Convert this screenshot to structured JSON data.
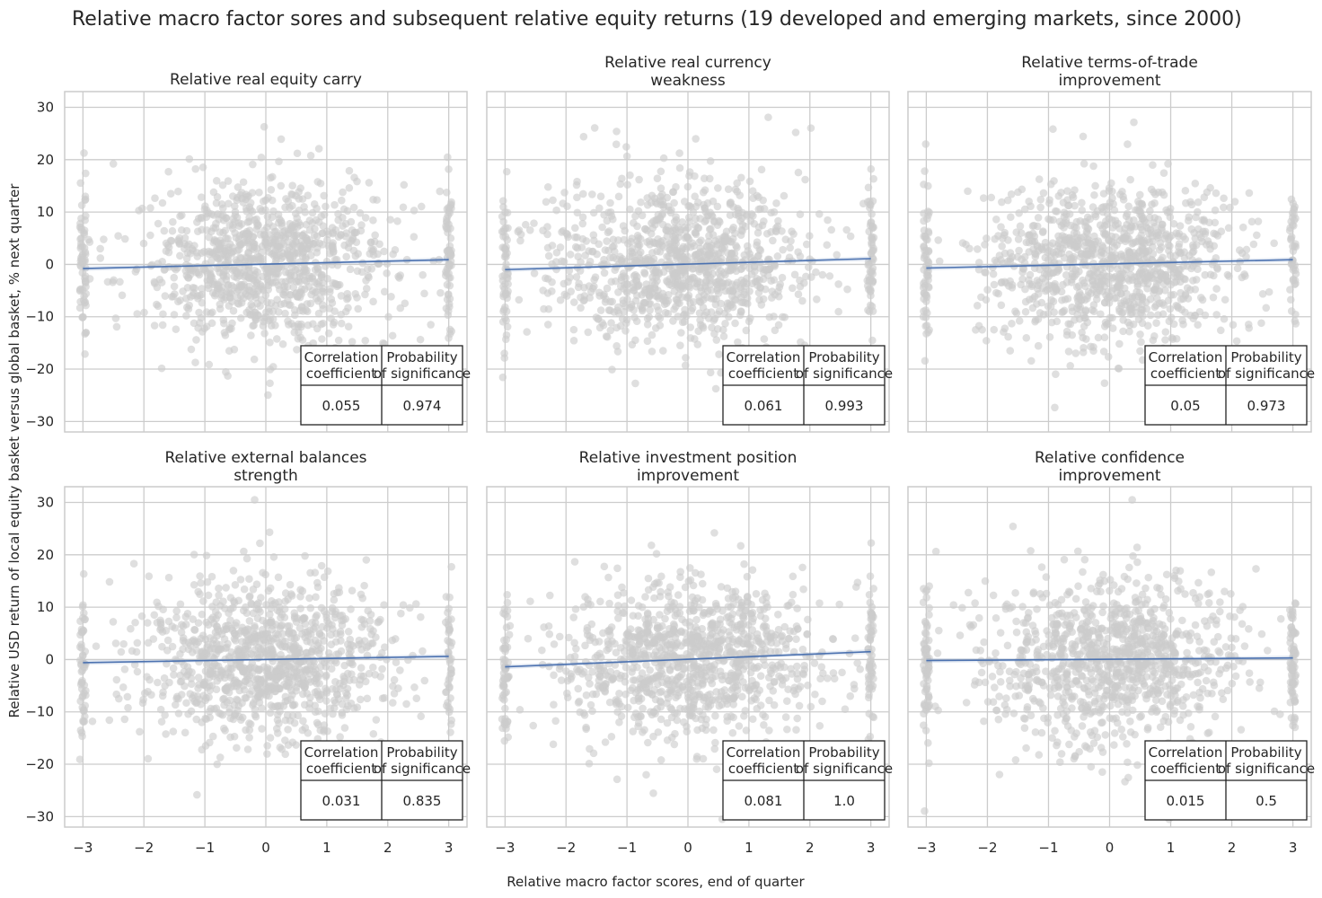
{
  "figure": {
    "title": "Relative macro factor sores and subsequent relative equity returns (19 developed and emerging markets, since 2000)",
    "xlabel": "Relative macro factor scores, end of quarter",
    "ylabel": "Relative USD return of local equity basket versus global basket, % next quarter"
  },
  "colors": {
    "points": "#cccccc",
    "line": "#4c72b0",
    "grid": "#cccccc",
    "spine": "#cccccc",
    "text": "#262626"
  },
  "chart_data": [
    {
      "type": "scatter",
      "title": [
        "Relative real equity carry"
      ],
      "xlim": [
        -3.3,
        3.3
      ],
      "ylim": [
        -32,
        33
      ],
      "xticks": [
        -3,
        -2,
        -1,
        0,
        1,
        2,
        3
      ],
      "xtick_labels": [
        "−3",
        "−2",
        "−1",
        "0",
        "1",
        "2",
        "3"
      ],
      "yticks": [
        30,
        20,
        10,
        0,
        -10,
        -20,
        -30
      ],
      "ytick_labels": [
        "30",
        "20",
        "10",
        "0",
        "−10",
        "−20",
        "−30"
      ],
      "regression_line": {
        "x": [
          -3,
          3
        ],
        "y": [
          -0.8,
          0.9
        ]
      },
      "stats_table": {
        "headers": [
          "Correlation\n coefficient",
          "Probability\nof significance"
        ],
        "values": [
          "0.055",
          "0.974"
        ]
      }
    },
    {
      "type": "scatter",
      "title": [
        "Relative real currency",
        "weakness"
      ],
      "xlim": [
        -3.3,
        3.3
      ],
      "ylim": [
        -32,
        33
      ],
      "xticks": [
        -3,
        -2,
        -1,
        0,
        1,
        2,
        3
      ],
      "xtick_labels": [
        "−3",
        "−2",
        "−1",
        "0",
        "1",
        "2",
        "3"
      ],
      "yticks": [
        30,
        20,
        10,
        0,
        -10,
        -20,
        -30
      ],
      "ytick_labels": [
        "30",
        "20",
        "10",
        "0",
        "−10",
        "−20",
        "−30"
      ],
      "regression_line": {
        "x": [
          -3,
          3
        ],
        "y": [
          -1.0,
          1.1
        ]
      },
      "stats_table": {
        "headers": [
          "Correlation\n coefficient",
          "Probability\nof significance"
        ],
        "values": [
          "0.061",
          "0.993"
        ]
      }
    },
    {
      "type": "scatter",
      "title": [
        "Relative terms-of-trade",
        "improvement"
      ],
      "xlim": [
        -3.3,
        3.3
      ],
      "ylim": [
        -32,
        33
      ],
      "xticks": [
        -3,
        -2,
        -1,
        0,
        1,
        2,
        3
      ],
      "xtick_labels": [
        "−3",
        "−2",
        "−1",
        "0",
        "1",
        "2",
        "3"
      ],
      "yticks": [
        30,
        20,
        10,
        0,
        -10,
        -20,
        -30
      ],
      "ytick_labels": [
        "30",
        "20",
        "10",
        "0",
        "−10",
        "−20",
        "−30"
      ],
      "regression_line": {
        "x": [
          -3,
          3
        ],
        "y": [
          -0.7,
          0.9
        ]
      },
      "stats_table": {
        "headers": [
          "Correlation\n coefficient",
          "Probability\nof significance"
        ],
        "values": [
          "0.05",
          "0.973"
        ]
      }
    },
    {
      "type": "scatter",
      "title": [
        "Relative external balances",
        "strength"
      ],
      "xlim": [
        -3.3,
        3.3
      ],
      "ylim": [
        -32,
        33
      ],
      "xticks": [
        -3,
        -2,
        -1,
        0,
        1,
        2,
        3
      ],
      "xtick_labels": [
        "−3",
        "−2",
        "−1",
        "0",
        "1",
        "2",
        "3"
      ],
      "yticks": [
        30,
        20,
        10,
        0,
        -10,
        -20,
        -30
      ],
      "ytick_labels": [
        "30",
        "20",
        "10",
        "0",
        "−10",
        "−20",
        "−30"
      ],
      "regression_line": {
        "x": [
          -3,
          3
        ],
        "y": [
          -0.6,
          0.6
        ]
      },
      "stats_table": {
        "headers": [
          "Correlation\n coefficient",
          "Probability\nof significance"
        ],
        "values": [
          "0.031",
          "0.835"
        ]
      }
    },
    {
      "type": "scatter",
      "title": [
        "Relative investment position",
        "improvement"
      ],
      "xlim": [
        -3.3,
        3.3
      ],
      "ylim": [
        -32,
        33
      ],
      "xticks": [
        -3,
        -2,
        -1,
        0,
        1,
        2,
        3
      ],
      "xtick_labels": [
        "−3",
        "−2",
        "−1",
        "0",
        "1",
        "2",
        "3"
      ],
      "yticks": [
        30,
        20,
        10,
        0,
        -10,
        -20,
        -30
      ],
      "ytick_labels": [
        "30",
        "20",
        "10",
        "0",
        "−10",
        "−20",
        "−30"
      ],
      "regression_line": {
        "x": [
          -3,
          3
        ],
        "y": [
          -1.4,
          1.5
        ]
      },
      "stats_table": {
        "headers": [
          "Correlation\n coefficient",
          "Probability\nof significance"
        ],
        "values": [
          "0.081",
          "1.0"
        ]
      }
    },
    {
      "type": "scatter",
      "title": [
        "Relative confidence",
        "improvement"
      ],
      "xlim": [
        -3.3,
        3.3
      ],
      "ylim": [
        -32,
        33
      ],
      "xticks": [
        -3,
        -2,
        -1,
        0,
        1,
        2,
        3
      ],
      "xtick_labels": [
        "−3",
        "−2",
        "−1",
        "0",
        "1",
        "2",
        "3"
      ],
      "yticks": [
        30,
        20,
        10,
        0,
        -10,
        -20,
        -30
      ],
      "ytick_labels": [
        "30",
        "20",
        "10",
        "0",
        "−10",
        "−20",
        "−30"
      ],
      "regression_line": {
        "x": [
          -3,
          3
        ],
        "y": [
          -0.2,
          0.3
        ]
      },
      "stats_table": {
        "headers": [
          "Correlation\n coefficient",
          "Probability\nof significance"
        ],
        "values": [
          "0.015",
          "0.5"
        ]
      }
    }
  ]
}
